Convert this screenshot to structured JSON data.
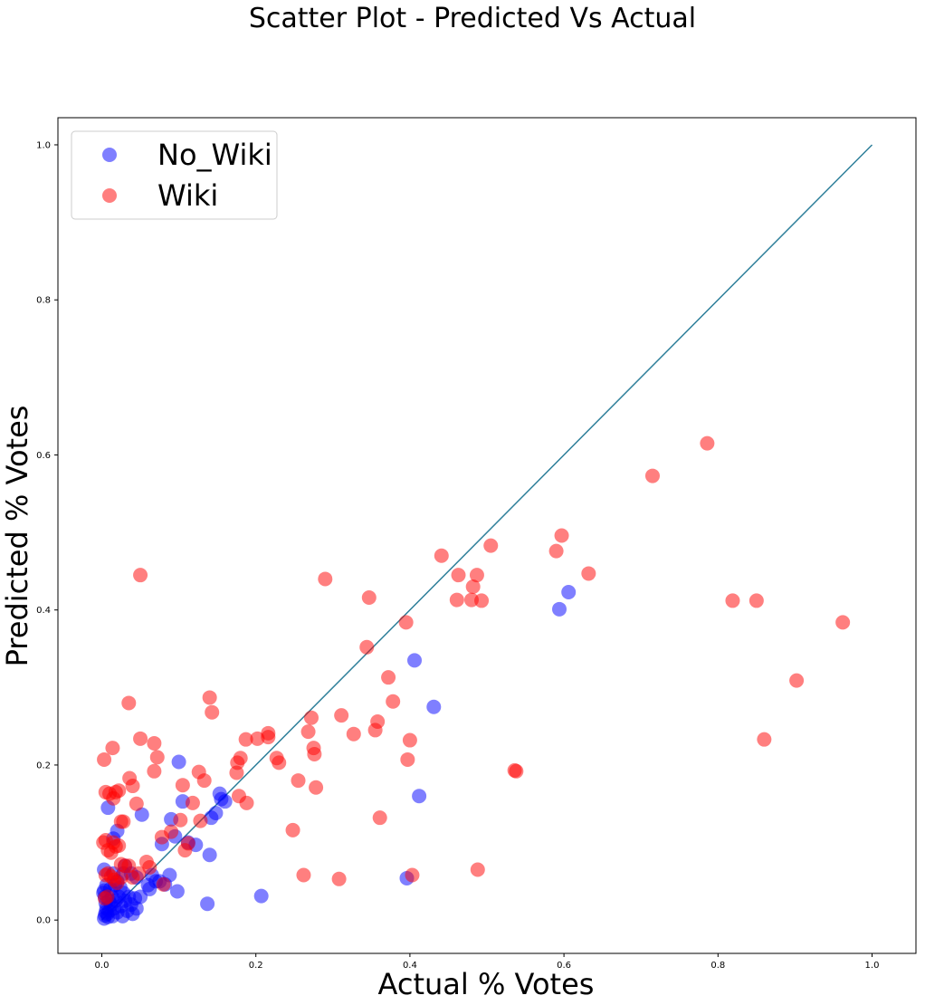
{
  "chart_data": {
    "type": "scatter",
    "title": "Scatter Plot - Predicted Vs Actual",
    "xlabel": "Actual % Votes",
    "ylabel": "Predicted % Votes",
    "xlim": [
      -0.057,
      1.057
    ],
    "ylim": [
      -0.043,
      1.035
    ],
    "x_ticks": [
      "0.0",
      "0.2",
      "0.4",
      "0.6",
      "0.8",
      "1.0"
    ],
    "y_ticks": [
      "0.0",
      "0.2",
      "0.4",
      "0.6",
      "0.8",
      "1.0"
    ],
    "grid": false,
    "legend_position": "top-left",
    "reference_line": {
      "x": [
        0,
        1
      ],
      "y": [
        0,
        1
      ],
      "color": "#2e7f9a"
    },
    "series": [
      {
        "name": "No_Wiki",
        "color": "#0000ff",
        "points": [
          [
            0.003,
            0.065
          ],
          [
            0.008,
            0.145
          ],
          [
            0.02,
            0.115
          ],
          [
            0.015,
            0.105
          ],
          [
            0.028,
            0.06
          ],
          [
            0.03,
            0.07
          ],
          [
            0.038,
            0.06
          ],
          [
            0.045,
            0.055
          ],
          [
            0.052,
            0.136
          ],
          [
            0.065,
            0.058
          ],
          [
            0.07,
            0.05
          ],
          [
            0.078,
            0.098
          ],
          [
            0.088,
            0.058
          ],
          [
            0.09,
            0.13
          ],
          [
            0.095,
            0.108
          ],
          [
            0.1,
            0.204
          ],
          [
            0.105,
            0.153
          ],
          [
            0.112,
            0.1
          ],
          [
            0.122,
            0.097
          ],
          [
            0.14,
            0.084
          ],
          [
            0.142,
            0.132
          ],
          [
            0.148,
            0.138
          ],
          [
            0.153,
            0.163
          ],
          [
            0.155,
            0.156
          ],
          [
            0.16,
            0.153
          ],
          [
            0.062,
            0.04
          ],
          [
            0.082,
            0.046
          ],
          [
            0.098,
            0.037
          ],
          [
            0.137,
            0.021
          ],
          [
            0.207,
            0.031
          ],
          [
            0.396,
            0.054
          ],
          [
            0.406,
            0.335
          ],
          [
            0.412,
            0.16
          ],
          [
            0.431,
            0.275
          ],
          [
            0.594,
            0.401
          ],
          [
            0.606,
            0.423
          ],
          [
            0.002,
            0.035
          ],
          [
            0.003,
            0.038
          ],
          [
            0.004,
            0.03
          ],
          [
            0.005,
            0.022
          ],
          [
            0.006,
            0.015
          ],
          [
            0.007,
            0.008
          ],
          [
            0.008,
            0.004
          ],
          [
            0.01,
            0.012
          ],
          [
            0.012,
            0.02
          ],
          [
            0.014,
            0.005
          ],
          [
            0.016,
            0.015
          ],
          [
            0.018,
            0.025
          ],
          [
            0.02,
            0.01
          ],
          [
            0.022,
            0.03
          ],
          [
            0.025,
            0.018
          ],
          [
            0.027,
            0.005
          ],
          [
            0.03,
            0.025
          ],
          [
            0.033,
            0.012
          ],
          [
            0.035,
            0.03
          ],
          [
            0.038,
            0.02
          ],
          [
            0.04,
            0.008
          ],
          [
            0.043,
            0.028
          ],
          [
            0.045,
            0.015
          ],
          [
            0.05,
            0.03
          ],
          [
            0.003,
            0.002
          ],
          [
            0.005,
            0.01
          ],
          [
            0.009,
            0.025
          ],
          [
            0.011,
            0.04
          ],
          [
            0.013,
            0.03
          ],
          [
            0.017,
            0.045
          ],
          [
            0.02,
            0.05
          ],
          [
            0.024,
            0.042
          ],
          [
            0.028,
            0.035
          ],
          [
            0.006,
            0.045
          ],
          [
            0.004,
            0.006
          ],
          [
            0.015,
            0.06
          ],
          [
            0.06,
            0.045
          ],
          [
            0.075,
            0.05
          ]
        ]
      },
      {
        "name": "Wiki",
        "color": "#ff0000",
        "points": [
          [
            0.003,
            0.207
          ],
          [
            0.005,
            0.165
          ],
          [
            0.01,
            0.163
          ],
          [
            0.014,
            0.222
          ],
          [
            0.015,
            0.157
          ],
          [
            0.018,
            0.165
          ],
          [
            0.022,
            0.167
          ],
          [
            0.025,
            0.127
          ],
          [
            0.028,
            0.127
          ],
          [
            0.035,
            0.28
          ],
          [
            0.036,
            0.183
          ],
          [
            0.04,
            0.173
          ],
          [
            0.045,
            0.15
          ],
          [
            0.05,
            0.234
          ],
          [
            0.05,
            0.445
          ],
          [
            0.068,
            0.228
          ],
          [
            0.068,
            0.192
          ],
          [
            0.072,
            0.21
          ],
          [
            0.078,
            0.107
          ],
          [
            0.09,
            0.114
          ],
          [
            0.102,
            0.129
          ],
          [
            0.105,
            0.174
          ],
          [
            0.108,
            0.09
          ],
          [
            0.112,
            0.099
          ],
          [
            0.118,
            0.151
          ],
          [
            0.126,
            0.191
          ],
          [
            0.128,
            0.128
          ],
          [
            0.133,
            0.18
          ],
          [
            0.14,
            0.287
          ],
          [
            0.143,
            0.268
          ],
          [
            0.175,
            0.19
          ],
          [
            0.176,
            0.203
          ],
          [
            0.18,
            0.209
          ],
          [
            0.178,
            0.16
          ],
          [
            0.187,
            0.233
          ],
          [
            0.188,
            0.151
          ],
          [
            0.202,
            0.234
          ],
          [
            0.216,
            0.241
          ],
          [
            0.216,
            0.236
          ],
          [
            0.227,
            0.209
          ],
          [
            0.23,
            0.203
          ],
          [
            0.248,
            0.116
          ],
          [
            0.255,
            0.18
          ],
          [
            0.262,
            0.058
          ],
          [
            0.268,
            0.243
          ],
          [
            0.272,
            0.261
          ],
          [
            0.275,
            0.222
          ],
          [
            0.276,
            0.214
          ],
          [
            0.278,
            0.171
          ],
          [
            0.29,
            0.44
          ],
          [
            0.308,
            0.053
          ],
          [
            0.311,
            0.264
          ],
          [
            0.327,
            0.24
          ],
          [
            0.344,
            0.352
          ],
          [
            0.347,
            0.416
          ],
          [
            0.355,
            0.245
          ],
          [
            0.358,
            0.256
          ],
          [
            0.361,
            0.132
          ],
          [
            0.372,
            0.313
          ],
          [
            0.378,
            0.282
          ],
          [
            0.395,
            0.384
          ],
          [
            0.397,
            0.207
          ],
          [
            0.4,
            0.232
          ],
          [
            0.403,
            0.058
          ],
          [
            0.441,
            0.47
          ],
          [
            0.461,
            0.413
          ],
          [
            0.463,
            0.445
          ],
          [
            0.48,
            0.413
          ],
          [
            0.482,
            0.43
          ],
          [
            0.487,
            0.445
          ],
          [
            0.488,
            0.065
          ],
          [
            0.493,
            0.412
          ],
          [
            0.505,
            0.483
          ],
          [
            0.536,
            0.193
          ],
          [
            0.538,
            0.192
          ],
          [
            0.59,
            0.476
          ],
          [
            0.597,
            0.496
          ],
          [
            0.632,
            0.447
          ],
          [
            0.715,
            0.573
          ],
          [
            0.786,
            0.615
          ],
          [
            0.819,
            0.412
          ],
          [
            0.85,
            0.412
          ],
          [
            0.86,
            0.233
          ],
          [
            0.902,
            0.309
          ],
          [
            0.962,
            0.384
          ],
          [
            0.002,
            0.1
          ],
          [
            0.005,
            0.103
          ],
          [
            0.008,
            0.09
          ],
          [
            0.012,
            0.087
          ],
          [
            0.015,
            0.1
          ],
          [
            0.018,
            0.095
          ],
          [
            0.022,
            0.096
          ],
          [
            0.025,
            0.072
          ],
          [
            0.03,
            0.07
          ],
          [
            0.035,
            0.07
          ],
          [
            0.04,
            0.055
          ],
          [
            0.048,
            0.06
          ],
          [
            0.058,
            0.075
          ],
          [
            0.062,
            0.068
          ],
          [
            0.08,
            0.046
          ],
          [
            0.005,
            0.058
          ],
          [
            0.008,
            0.06
          ],
          [
            0.012,
            0.056
          ],
          [
            0.016,
            0.052
          ],
          [
            0.02,
            0.048
          ],
          [
            0.025,
            0.055
          ],
          [
            0.007,
            0.03
          ],
          [
            0.004,
            0.028
          ]
        ]
      }
    ]
  }
}
